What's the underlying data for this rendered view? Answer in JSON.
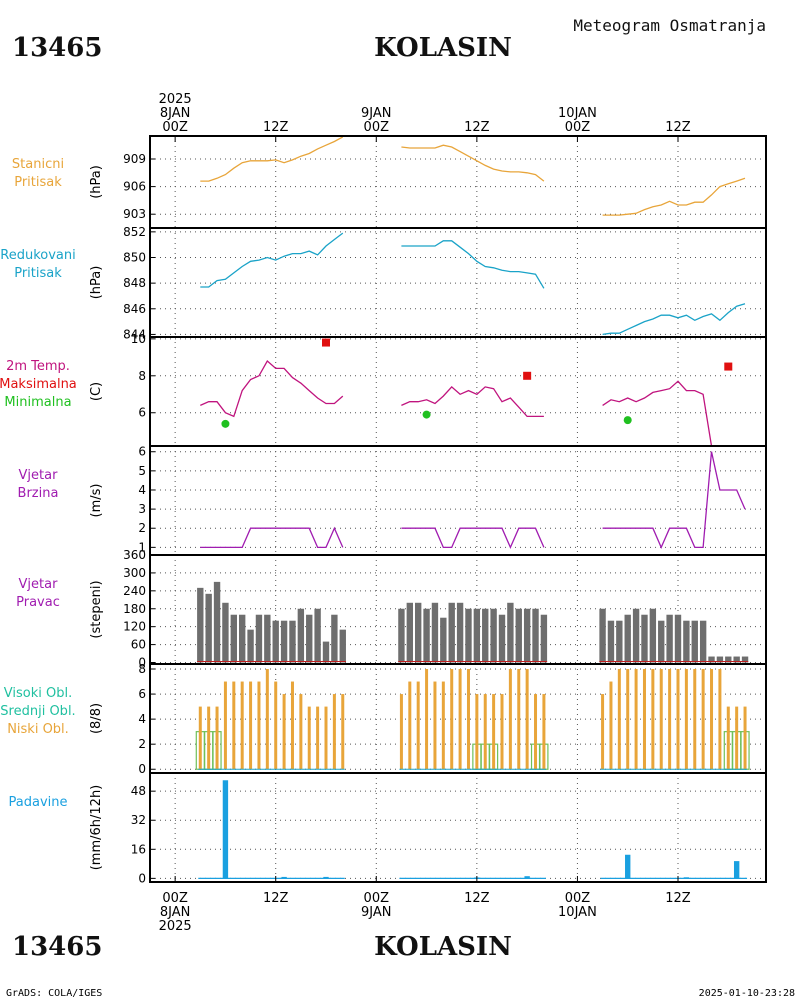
{
  "header": {
    "station_id": "13465",
    "station_name": "KOLASIN",
    "title": "Meteogram Osmatranja"
  },
  "footer": {
    "station_id": "13465",
    "station_name": "KOLASIN",
    "credit": "GrADS: COLA/IGES",
    "timestamp": "2025-01-10-23:28"
  },
  "time_axis": {
    "top_labels": [
      {
        "t": 0,
        "lines": [
          "2025",
          "8JAN",
          "00Z"
        ]
      },
      {
        "t": 12,
        "lines": [
          "12Z"
        ]
      },
      {
        "t": 24,
        "lines": [
          "9JAN",
          "00Z"
        ]
      },
      {
        "t": 36,
        "lines": [
          "12Z"
        ]
      },
      {
        "t": 48,
        "lines": [
          "10JAN",
          "00Z"
        ]
      },
      {
        "t": 60,
        "lines": [
          "12Z"
        ]
      }
    ],
    "bottom_labels": [
      {
        "t": 0,
        "lines": [
          "00Z",
          "8JAN",
          "2025"
        ]
      },
      {
        "t": 12,
        "lines": [
          "12Z"
        ]
      },
      {
        "t": 24,
        "lines": [
          "00Z",
          "9JAN"
        ]
      },
      {
        "t": 36,
        "lines": [
          "12Z"
        ]
      },
      {
        "t": 48,
        "lines": [
          "00Z",
          "10JAN"
        ]
      },
      {
        "t": 60,
        "lines": [
          "12Z"
        ]
      }
    ],
    "xlim": [
      -3,
      70.5
    ]
  },
  "colors": {
    "station_pressure": "#e8a53a",
    "reduced_pressure": "#1aa3c8",
    "temperature": "#c0147e",
    "tmax": "#e01010",
    "tmin": "#20c020",
    "wind_speed": "#a01cb0",
    "wind_dir_bar": "#6e6e6e",
    "wind_dir_base": "#c02020",
    "low_cloud": "#e8a53a",
    "mid_cloud": "#20c0a0",
    "high_cloud": "#6fc05a",
    "precip": "#1aa0e0",
    "grid": "#555555"
  },
  "chart_data": [
    {
      "type": "line",
      "panel": "station_pressure",
      "labels": [
        "Stanicni",
        "Pritisak"
      ],
      "ylabel": "(hPa)",
      "yticks": [
        903,
        906,
        909
      ],
      "ylim": [
        901.5,
        911.5
      ],
      "grid": true,
      "series": [
        {
          "x": [
            3,
            4,
            5,
            6,
            7,
            8,
            9,
            10,
            11,
            12,
            13,
            14,
            15,
            16,
            17,
            18,
            19,
            20
          ],
          "y": [
            906.6,
            906.6,
            906.9,
            907.3,
            908.0,
            908.6,
            908.8,
            908.8,
            908.8,
            908.9,
            908.6,
            908.9,
            909.3,
            909.6,
            910.1,
            910.5,
            910.9,
            911.4
          ]
        },
        {
          "x": [
            27,
            28,
            29,
            30,
            31,
            32,
            33,
            34,
            35,
            36,
            37,
            38,
            39,
            40,
            41,
            42,
            43,
            44
          ],
          "y": [
            910.3,
            910.2,
            910.2,
            910.2,
            910.2,
            910.5,
            910.3,
            909.8,
            909.3,
            908.8,
            908.3,
            907.9,
            907.7,
            907.6,
            907.6,
            907.5,
            907.3,
            906.6
          ]
        },
        {
          "x": [
            51,
            52,
            53,
            54,
            55,
            56,
            57,
            58,
            59,
            60,
            61,
            62,
            63,
            64,
            65,
            66,
            67,
            68
          ],
          "y": [
            902.9,
            902.9,
            902.9,
            903.0,
            903.1,
            903.5,
            903.8,
            904.0,
            904.4,
            904.0,
            904.0,
            904.3,
            904.3,
            905.1,
            906.0,
            906.3,
            906.6,
            906.9
          ]
        }
      ]
    },
    {
      "type": "line",
      "panel": "reduced_pressure",
      "labels": [
        "Redukovani",
        "Pritisak"
      ],
      "ylabel": "(hPa)",
      "yticks": [
        844,
        846,
        848,
        850,
        852
      ],
      "ylim": [
        843.8,
        852.3
      ],
      "grid": true,
      "series": [
        {
          "x": [
            3,
            4,
            5,
            6,
            7,
            8,
            9,
            10,
            11,
            12,
            13,
            14,
            15,
            16,
            17,
            18,
            19,
            20
          ],
          "y": [
            847.7,
            847.7,
            848.2,
            848.3,
            848.8,
            849.3,
            849.7,
            849.8,
            850.0,
            849.8,
            850.1,
            850.3,
            850.3,
            850.5,
            850.2,
            850.9,
            851.4,
            851.9
          ]
        },
        {
          "x": [
            27,
            28,
            29,
            30,
            31,
            32,
            33,
            34,
            35,
            36,
            37,
            38,
            39,
            40,
            41,
            42,
            43,
            44
          ],
          "y": [
            850.9,
            850.9,
            850.9,
            850.9,
            850.9,
            851.3,
            851.3,
            850.8,
            850.3,
            849.7,
            849.3,
            849.2,
            849.0,
            848.9,
            848.9,
            848.8,
            848.7,
            847.6
          ]
        },
        {
          "x": [
            51,
            52,
            53,
            54,
            55,
            56,
            57,
            58,
            59,
            60,
            61,
            62,
            63,
            64,
            65,
            66,
            67,
            68
          ],
          "y": [
            844.0,
            844.1,
            844.1,
            844.4,
            844.7,
            845.0,
            845.2,
            845.5,
            845.5,
            845.3,
            845.5,
            845.1,
            845.4,
            845.6,
            845.1,
            845.7,
            846.2,
            846.4
          ]
        }
      ]
    },
    {
      "type": "line",
      "panel": "temperature",
      "labels": [
        "2m Temp.",
        "Maksimalna",
        "Minimalna"
      ],
      "ylabel": "(C)",
      "yticks": [
        6,
        8,
        10
      ],
      "ylim": [
        4.2,
        10.1
      ],
      "grid": true,
      "series": [
        {
          "x": [
            3,
            4,
            5,
            6,
            7,
            8,
            9,
            10,
            11,
            12,
            13,
            14,
            15,
            16,
            17,
            18,
            19,
            20
          ],
          "y": [
            6.4,
            6.6,
            6.6,
            6.0,
            5.8,
            7.2,
            7.8,
            8.0,
            8.8,
            8.4,
            8.4,
            7.9,
            7.6,
            7.2,
            6.8,
            6.5,
            6.5,
            6.9
          ]
        },
        {
          "x": [
            27,
            28,
            29,
            30,
            31,
            32,
            33,
            34,
            35,
            36,
            37,
            38,
            39,
            40,
            41,
            42,
            43,
            44
          ],
          "y": [
            6.4,
            6.6,
            6.6,
            6.7,
            6.5,
            6.9,
            7.4,
            7.0,
            7.2,
            7.0,
            7.4,
            7.3,
            6.6,
            6.8,
            6.3,
            5.8,
            5.8,
            5.8
          ]
        },
        {
          "x": [
            51,
            52,
            53,
            54,
            55,
            56,
            57,
            58,
            59,
            60,
            61,
            62,
            63,
            64
          ],
          "y": [
            6.4,
            6.7,
            6.6,
            6.8,
            6.6,
            6.8,
            7.1,
            7.2,
            7.3,
            7.7,
            7.2,
            7.2,
            7.0,
            4.2
          ]
        }
      ],
      "tmax": [
        {
          "x": 18,
          "y": 9.8
        },
        {
          "x": 42,
          "y": 8.0
        },
        {
          "x": 66,
          "y": 8.5
        }
      ],
      "tmin": [
        {
          "x": 6,
          "y": 5.4
        },
        {
          "x": 30,
          "y": 5.9
        },
        {
          "x": 54,
          "y": 5.6
        }
      ]
    },
    {
      "type": "line",
      "panel": "wind_speed",
      "labels": [
        "Vjetar",
        "Brzina"
      ],
      "ylabel": "(m/s)",
      "yticks": [
        1,
        2,
        3,
        4,
        5,
        6
      ],
      "ylim": [
        0.6,
        6.3
      ],
      "grid": true,
      "series": [
        {
          "x": [
            3,
            4,
            5,
            6,
            7,
            8,
            9,
            10,
            11,
            12,
            13,
            14,
            15,
            16,
            17,
            18,
            19,
            20
          ],
          "y": [
            1,
            1,
            1,
            1,
            1,
            1,
            2,
            2,
            2,
            2,
            2,
            2,
            2,
            2,
            1,
            1,
            2,
            1
          ]
        },
        {
          "x": [
            27,
            28,
            29,
            30,
            31,
            32,
            33,
            34,
            35,
            36,
            37,
            38,
            39,
            40,
            41,
            42,
            43,
            44
          ],
          "y": [
            2,
            2,
            2,
            2,
            2,
            1,
            1,
            2,
            2,
            2,
            2,
            2,
            2,
            1,
            2,
            2,
            2,
            1
          ]
        },
        {
          "x": [
            51,
            52,
            53,
            54,
            55,
            56,
            57,
            58,
            59,
            60,
            61,
            62,
            63,
            64,
            65,
            66,
            67,
            68
          ],
          "y": [
            2,
            2,
            2,
            2,
            2,
            2,
            2,
            1,
            2,
            2,
            2,
            1,
            1,
            6,
            4,
            4,
            4,
            3
          ]
        }
      ]
    },
    {
      "type": "bar",
      "panel": "wind_direction",
      "labels": [
        "Vjetar",
        "Pravac"
      ],
      "ylabel": "(stepeni)",
      "yticks": [
        0,
        60,
        120,
        180,
        240,
        300,
        360
      ],
      "ylim": [
        -5,
        360
      ],
      "grid": true,
      "x": [
        3,
        4,
        5,
        6,
        7,
        8,
        9,
        10,
        11,
        12,
        13,
        14,
        15,
        16,
        17,
        18,
        19,
        20,
        27,
        28,
        29,
        30,
        31,
        32,
        33,
        34,
        35,
        36,
        37,
        38,
        39,
        40,
        41,
        42,
        43,
        44,
        51,
        52,
        53,
        54,
        55,
        56,
        57,
        58,
        59,
        60,
        61,
        62,
        63,
        64,
        65,
        66,
        67,
        68
      ],
      "values": [
        250,
        230,
        270,
        200,
        160,
        160,
        110,
        160,
        160,
        140,
        140,
        140,
        180,
        160,
        180,
        70,
        160,
        110,
        180,
        200,
        200,
        180,
        200,
        150,
        200,
        200,
        180,
        180,
        180,
        180,
        160,
        200,
        180,
        180,
        180,
        160,
        180,
        140,
        140,
        160,
        180,
        160,
        180,
        140,
        160,
        160,
        140,
        140,
        140,
        20,
        20,
        20,
        20,
        20
      ]
    },
    {
      "type": "bar",
      "panel": "clouds",
      "labels": [
        "Visoki Obl.",
        "Srednji Obl.",
        "Niski Obl."
      ],
      "ylabel": "(8/8)",
      "yticks": [
        0,
        2,
        4,
        6,
        8
      ],
      "ylim": [
        -0.3,
        8.4
      ],
      "grid": true,
      "x": [
        3,
        4,
        5,
        6,
        7,
        8,
        9,
        10,
        11,
        12,
        13,
        14,
        15,
        16,
        17,
        18,
        19,
        20,
        27,
        28,
        29,
        30,
        31,
        32,
        33,
        34,
        35,
        36,
        37,
        38,
        39,
        40,
        41,
        42,
        43,
        44,
        51,
        52,
        53,
        54,
        55,
        56,
        57,
        58,
        59,
        60,
        61,
        62,
        63,
        64,
        65,
        66,
        67,
        68
      ],
      "series": [
        {
          "name": "Niski Obl.",
          "values": [
            5,
            5,
            5,
            7,
            7,
            7,
            7,
            7,
            8,
            7,
            6,
            7,
            6,
            5,
            5,
            5,
            6,
            6,
            6,
            7,
            7,
            8,
            7,
            7,
            8,
            8,
            8,
            6,
            6,
            6,
            6,
            8,
            8,
            8,
            6,
            6,
            6,
            7,
            8,
            8,
            8,
            8,
            8,
            8,
            8,
            8,
            8,
            8,
            8,
            8,
            8,
            5,
            5,
            5
          ]
        },
        {
          "name": "Srednji Obl.",
          "values": [
            3,
            3,
            3,
            0,
            0,
            0,
            0,
            0,
            0,
            0,
            0,
            0,
            0,
            0,
            0,
            0,
            0,
            0,
            0,
            0,
            0,
            0,
            0,
            0,
            0,
            0,
            0,
            2,
            2,
            2,
            0,
            0,
            0,
            0,
            2,
            2,
            0,
            0,
            0,
            0,
            0,
            0,
            0,
            0,
            0,
            0,
            0,
            0,
            0,
            0,
            0,
            3,
            3,
            3
          ]
        }
      ]
    },
    {
      "type": "bar",
      "panel": "precipitation",
      "labels": [
        "Padavine"
      ],
      "ylabel": "(mm/6h/12h)",
      "yticks": [
        0,
        16,
        32,
        48
      ],
      "ylim": [
        -2,
        58
      ],
      "grid": true,
      "x": [
        3,
        4,
        5,
        6,
        7,
        8,
        9,
        10,
        11,
        12,
        13,
        14,
        15,
        16,
        17,
        18,
        19,
        20,
        27,
        28,
        29,
        30,
        31,
        32,
        33,
        34,
        35,
        36,
        37,
        38,
        39,
        40,
        41,
        42,
        43,
        44,
        51,
        52,
        53,
        54,
        55,
        56,
        57,
        58,
        59,
        60,
        61,
        62,
        63,
        64,
        65,
        66,
        67,
        68
      ],
      "values": [
        0,
        0,
        0,
        54,
        0,
        0,
        0,
        0,
        0,
        0,
        0.8,
        0,
        0,
        0,
        0,
        0.8,
        0,
        0,
        0,
        0,
        0,
        0,
        0,
        0,
        0,
        0,
        0,
        0.5,
        0,
        0,
        0,
        0,
        0,
        1.2,
        0,
        0,
        0,
        0,
        0,
        13,
        0,
        0,
        0,
        0,
        0,
        0,
        0.6,
        0,
        0,
        0,
        0,
        0,
        9.5,
        0
      ]
    }
  ]
}
